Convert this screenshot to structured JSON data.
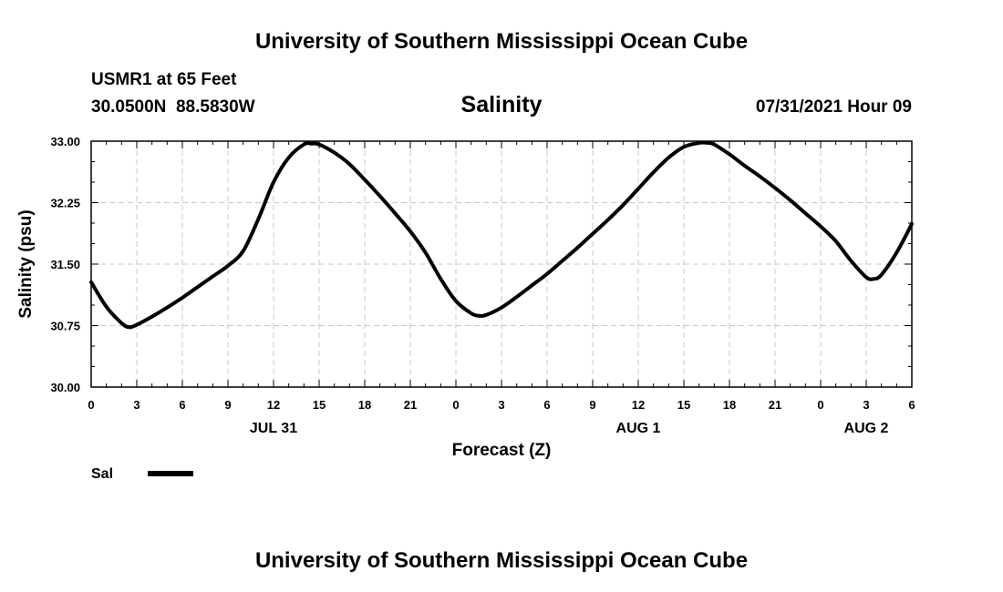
{
  "header": {
    "title": "University of Southern Mississippi Ocean Cube",
    "station": "USMR1 at 65 Feet",
    "coords": "30.0500N  88.5830W",
    "date": "07/31/2021 Hour 09"
  },
  "footer": {
    "title": "University of Southern Mississippi Ocean Cube"
  },
  "chart_data": {
    "type": "line",
    "title": "Salinity",
    "ylabel": "Salinity (psu)",
    "xlabel": "Forecast (Z)",
    "ylim": [
      30.0,
      33.0
    ],
    "yticks": [
      "30.00",
      "30.75",
      "31.50",
      "32.25",
      "33.00"
    ],
    "xlim": [
      0,
      54
    ],
    "xticks": [
      "0",
      "3",
      "6",
      "9",
      "12",
      "15",
      "18",
      "21",
      "0",
      "3",
      "6",
      "9",
      "12",
      "15",
      "18",
      "21",
      "0",
      "3",
      "6"
    ],
    "date_labels": [
      {
        "text": "JUL 31",
        "x": 12
      },
      {
        "text": "AUG 1",
        "x": 36
      },
      {
        "text": "AUG 2",
        "x": 51
      }
    ],
    "grid": true,
    "legend_position": "bottom-left",
    "series": [
      {
        "name": "Sal",
        "color": "#000000",
        "x": [
          0,
          1,
          2,
          2.5,
          3,
          4,
          5,
          6,
          7,
          8,
          9,
          10,
          11,
          12,
          13,
          14,
          14.5,
          15,
          16,
          17,
          18,
          19,
          20,
          21,
          22,
          23,
          24,
          25,
          25.5,
          26,
          27,
          28,
          29,
          30,
          31,
          32,
          33,
          34,
          35,
          36,
          37,
          38,
          39,
          40,
          40.5,
          41,
          42,
          43,
          44,
          45,
          46,
          47,
          48,
          49,
          50,
          51,
          51.5,
          52,
          53,
          54
        ],
        "y": [
          31.28,
          30.98,
          30.78,
          30.73,
          30.76,
          30.86,
          30.97,
          31.09,
          31.22,
          31.35,
          31.48,
          31.66,
          32.05,
          32.5,
          32.8,
          32.96,
          32.97,
          32.96,
          32.86,
          32.72,
          32.53,
          32.33,
          32.12,
          31.9,
          31.64,
          31.32,
          31.05,
          30.9,
          30.87,
          30.88,
          30.97,
          31.1,
          31.24,
          31.38,
          31.54,
          31.7,
          31.87,
          32.04,
          32.22,
          32.42,
          32.62,
          32.8,
          32.93,
          32.98,
          32.98,
          32.96,
          32.84,
          32.7,
          32.57,
          32.43,
          32.28,
          32.12,
          31.96,
          31.78,
          31.54,
          31.34,
          31.32,
          31.37,
          31.64,
          31.99
        ]
      }
    ]
  }
}
